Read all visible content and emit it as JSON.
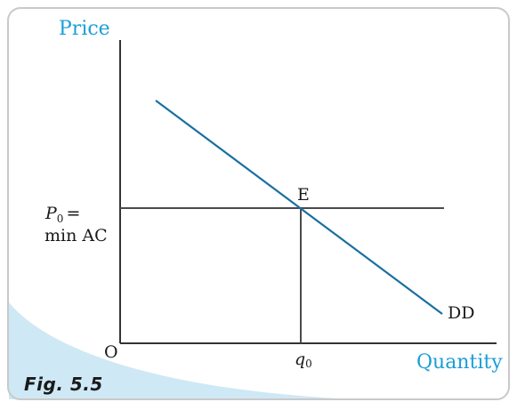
{
  "axes": {
    "y_title": "Price",
    "x_title": "Quantity",
    "origin": "O"
  },
  "price_label": {
    "main": "P",
    "sub": "0",
    "suffix": "=",
    "line2": "min AC"
  },
  "quantity_label": {
    "main": "q",
    "sub": "0"
  },
  "point_label": "E",
  "curve_label": "DD",
  "figure_caption": "Fig. 5.5",
  "colors": {
    "accent_text": "#1a9fd6",
    "demand_line": "#1a6fa0",
    "axis": "#333333",
    "reference_line": "#4a4a4a",
    "frame": "#c9c9c9",
    "corner_wash": "#cfe8f5"
  }
}
